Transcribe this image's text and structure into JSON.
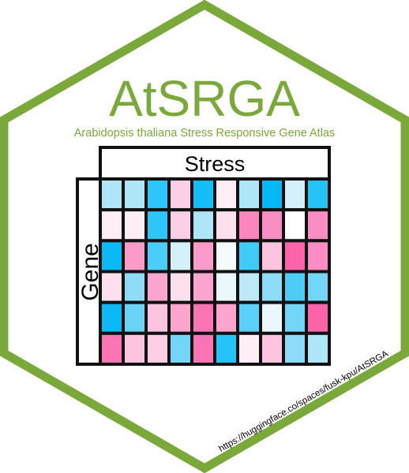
{
  "logo": {
    "title": "AtSRGA",
    "subtitle": "Arabidopsis thaliana Stress Responsive Gene Atlas",
    "column_header": "Stress",
    "row_header": "Gene",
    "url": "https://huggingface.co/spaces/fusk-kpu/AtSRGA"
  },
  "colors": {
    "hex_border": "#7aa83a",
    "title": "#7aa83a",
    "subtitle": "#7aa83a",
    "grid_lines": "#111111",
    "text": "#000000"
  },
  "heatmap": {
    "rows": 6,
    "cols": 10,
    "cells": [
      [
        "#aee6f7",
        "#aee6f7",
        "#2ec6f8",
        "#fdcfe5",
        "#13bdf6",
        "#ffeef6",
        "#aee6f7",
        "#06b9f6",
        "#d2f1fb",
        "#25c3f7"
      ],
      [
        "#ffeef6",
        "#ffeef6",
        "#2ec6f8",
        "#fdcfe5",
        "#aee6f7",
        "#fde0ee",
        "#fa86bd",
        "#fa8dc1",
        "#ffffff",
        "#fa8dc1"
      ],
      [
        "#0ab9f6",
        "#fb9bc9",
        "#4ccdf8",
        "#d2f1fb",
        "#fb9bc9",
        "#f4fbfe",
        "#40caf8",
        "#fdc4df",
        "#fc64aa",
        "#fa8dc1"
      ],
      [
        "#fde0ee",
        "#8ddbf6",
        "#fca5ce",
        "#fde0ee",
        "#fca5ce",
        "#eaf8fd",
        "#bde9f7",
        "#8ddbf6",
        "#4ccdf8",
        "#73d6f8"
      ],
      [
        "#0ab9f6",
        "#6ad3f6",
        "#fdc4df",
        "#fca5ce",
        "#fb74b4",
        "#fca5ce",
        "#5cd0f8",
        "#eaf8fd",
        "#73d6f8",
        "#fc64aa"
      ],
      [
        "#fb74b4",
        "#fdc4df",
        "#fdcfe5",
        "#73d6f8",
        "#fb74b4",
        "#25c3f7",
        "#ffeef6",
        "#fdc4df",
        "#8ddbf6",
        "#aee6f7"
      ]
    ]
  }
}
